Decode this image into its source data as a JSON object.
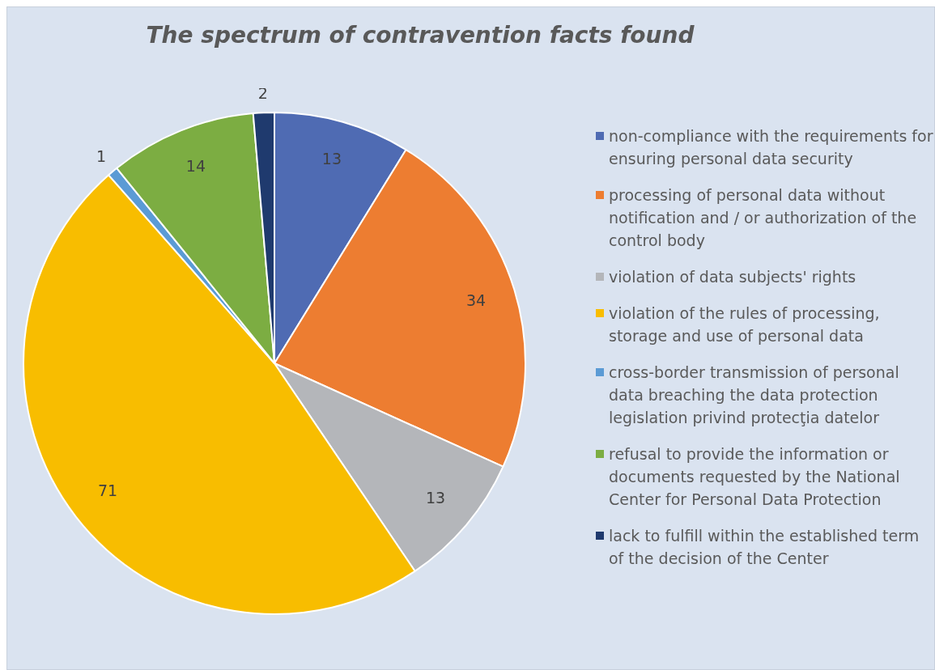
{
  "chart_data": {
    "type": "pie",
    "title": "The spectrum of contravention facts found",
    "categories": [
      "non-compliance with the requirements for ensuring  personal data security",
      "processing of personal data without notification and / or authorization of the control body",
      "violation of data subjects' rights",
      "violation of the rules of processing, storage and use of personal data",
      "cross-border transmission of personal data  breaching the data protection legislation privind protecţia datelor",
      "refusal to provide the information or documents requested by the National Center for Personal Data Protection",
      "lack to fulfill within the established term of the decision of the Center"
    ],
    "values": [
      13,
      34,
      13,
      71,
      1,
      14,
      2
    ],
    "colors": [
      "#4f6bb3",
      "#ed7d31",
      "#b4b6ba",
      "#f8bd00",
      "#5b9bd5",
      "#7cad42",
      "#1f3a6e"
    ],
    "data_labels": true,
    "legend": "right"
  }
}
